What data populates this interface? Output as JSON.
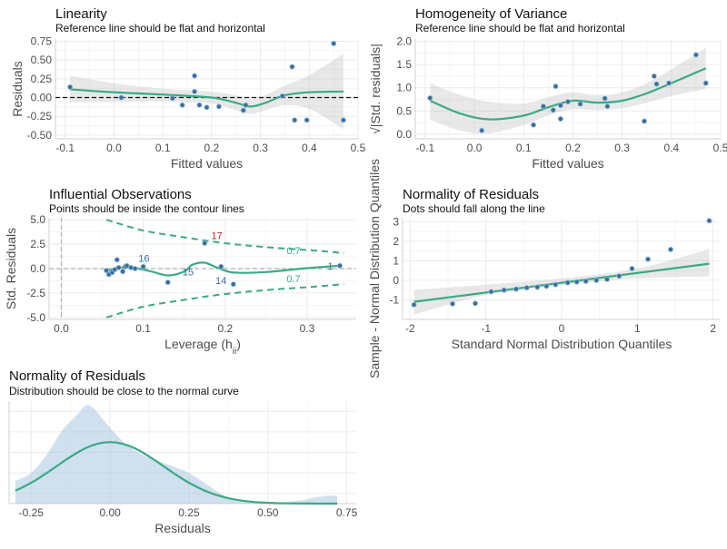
{
  "palette": {
    "line": "#3aaa85",
    "band": "#bdbdbd",
    "point": "#3a6d9a",
    "outlier": "#c62828",
    "density": "#a9c6e0",
    "grid": "#ebebeb",
    "axis_text": "#4d4d4d"
  },
  "chart_data": [
    {
      "id": "linearity",
      "type": "scatter",
      "title": "Linearity",
      "subtitle": "Reference line should be flat and horizontal",
      "xlabel": "Fitted values",
      "ylabel": "Residuals",
      "xlim": [
        -0.12,
        0.5
      ],
      "ylim": [
        -0.55,
        0.78
      ],
      "xticks": [
        -0.1,
        0.0,
        0.1,
        0.2,
        0.3,
        0.4,
        0.5
      ],
      "xtick_labels": [
        "-0.1",
        "0.0",
        "0.1",
        "0.2",
        "0.3",
        "0.4",
        "0.5"
      ],
      "yticks": [
        -0.5,
        -0.25,
        0.0,
        0.25,
        0.5,
        0.75
      ],
      "ytick_labels": [
        "-0.50",
        "-0.25",
        "0.00",
        "0.25",
        "0.50",
        "0.75"
      ],
      "hline": 0,
      "points": [
        [
          -0.09,
          0.14
        ],
        [
          0.015,
          0.0
        ],
        [
          0.12,
          -0.01
        ],
        [
          0.14,
          -0.1
        ],
        [
          0.165,
          0.29
        ],
        [
          0.165,
          0.08
        ],
        [
          0.175,
          -0.1
        ],
        [
          0.19,
          -0.13
        ],
        [
          0.215,
          -0.12
        ],
        [
          0.265,
          -0.17
        ],
        [
          0.27,
          -0.1
        ],
        [
          0.345,
          0.02
        ],
        [
          0.365,
          0.41
        ],
        [
          0.37,
          -0.3
        ],
        [
          0.395,
          -0.3
        ],
        [
          0.45,
          0.72
        ],
        [
          0.47,
          -0.3
        ]
      ],
      "smooth": [
        [
          -0.09,
          0.11
        ],
        [
          0.0,
          0.07
        ],
        [
          0.1,
          0.04
        ],
        [
          0.2,
          0.0
        ],
        [
          0.25,
          -0.07
        ],
        [
          0.28,
          -0.12
        ],
        [
          0.31,
          -0.07
        ],
        [
          0.35,
          0.03
        ],
        [
          0.4,
          0.07
        ],
        [
          0.47,
          0.08
        ]
      ],
      "band_lower": [
        [
          -0.09,
          -0.06
        ],
        [
          0.0,
          -0.06
        ],
        [
          0.1,
          -0.05
        ],
        [
          0.2,
          -0.08
        ],
        [
          0.25,
          -0.17
        ],
        [
          0.28,
          -0.22
        ],
        [
          0.31,
          -0.17
        ],
        [
          0.35,
          -0.1
        ],
        [
          0.4,
          -0.15
        ],
        [
          0.47,
          -0.42
        ]
      ],
      "band_upper": [
        [
          -0.09,
          0.29
        ],
        [
          0.0,
          0.19
        ],
        [
          0.1,
          0.12
        ],
        [
          0.2,
          0.08
        ],
        [
          0.25,
          0.03
        ],
        [
          0.28,
          -0.02
        ],
        [
          0.31,
          0.03
        ],
        [
          0.35,
          0.16
        ],
        [
          0.4,
          0.3
        ],
        [
          0.47,
          0.58
        ]
      ]
    },
    {
      "id": "homogeneity",
      "type": "scatter",
      "title": "Homogeneity of Variance",
      "subtitle": "Reference line should be flat and horizontal",
      "xlabel": "Fitted values",
      "ylabel": "√|Std. residuals|",
      "xlim": [
        -0.12,
        0.5
      ],
      "ylim": [
        -0.1,
        2.05
      ],
      "xticks": [
        -0.1,
        0.0,
        0.1,
        0.2,
        0.3,
        0.4,
        0.5
      ],
      "xtick_labels": [
        "-0.1",
        "0.0",
        "0.1",
        "0.2",
        "0.3",
        "0.4",
        "0.5"
      ],
      "yticks": [
        0.0,
        0.5,
        1.0,
        1.5,
        2.0
      ],
      "ytick_labels": [
        "0.0",
        "0.5",
        "1.0",
        "1.5",
        "2.0"
      ],
      "points": [
        [
          -0.09,
          0.78
        ],
        [
          0.015,
          0.08
        ],
        [
          0.12,
          0.2
        ],
        [
          0.14,
          0.6
        ],
        [
          0.16,
          0.52
        ],
        [
          0.165,
          1.03
        ],
        [
          0.175,
          0.62
        ],
        [
          0.175,
          0.33
        ],
        [
          0.19,
          0.7
        ],
        [
          0.215,
          0.65
        ],
        [
          0.265,
          0.77
        ],
        [
          0.27,
          0.6
        ],
        [
          0.345,
          0.28
        ],
        [
          0.365,
          1.25
        ],
        [
          0.37,
          1.08
        ],
        [
          0.395,
          1.1
        ],
        [
          0.45,
          1.71
        ],
        [
          0.47,
          1.1
        ]
      ],
      "smooth": [
        [
          -0.09,
          0.72
        ],
        [
          -0.03,
          0.45
        ],
        [
          0.03,
          0.32
        ],
        [
          0.1,
          0.4
        ],
        [
          0.15,
          0.58
        ],
        [
          0.2,
          0.72
        ],
        [
          0.25,
          0.68
        ],
        [
          0.3,
          0.72
        ],
        [
          0.35,
          0.88
        ],
        [
          0.4,
          1.1
        ],
        [
          0.47,
          1.42
        ]
      ],
      "band_lower": [
        [
          -0.09,
          0.32
        ],
        [
          -0.03,
          0.08
        ],
        [
          0.03,
          0.02
        ],
        [
          0.1,
          0.2
        ],
        [
          0.15,
          0.4
        ],
        [
          0.2,
          0.54
        ],
        [
          0.25,
          0.52
        ],
        [
          0.3,
          0.56
        ],
        [
          0.35,
          0.68
        ],
        [
          0.4,
          0.82
        ],
        [
          0.47,
          0.98
        ]
      ],
      "band_upper": [
        [
          -0.09,
          1.1
        ],
        [
          -0.03,
          0.85
        ],
        [
          0.03,
          0.7
        ],
        [
          0.1,
          0.66
        ],
        [
          0.15,
          0.8
        ],
        [
          0.2,
          0.9
        ],
        [
          0.25,
          0.84
        ],
        [
          0.3,
          0.9
        ],
        [
          0.35,
          1.1
        ],
        [
          0.4,
          1.4
        ],
        [
          0.47,
          1.86
        ]
      ]
    },
    {
      "id": "influential",
      "type": "scatter",
      "title": "Influential Observations",
      "subtitle": "Points should be inside the contour lines",
      "xlabel": "Leverage (h",
      "xlabel_sub": "ii",
      "xlabel_end": ")",
      "ylabel": "Std. Residuals",
      "xlim": [
        -0.015,
        0.36
      ],
      "ylim": [
        -5.2,
        5.2
      ],
      "xticks": [
        0.0,
        0.1,
        0.2,
        0.3
      ],
      "xtick_labels": [
        "0.0",
        "0.1",
        "0.2",
        "0.3"
      ],
      "yticks": [
        -5.0,
        -2.5,
        0.0,
        2.5,
        5.0
      ],
      "ytick_labels": [
        "-5.0",
        "-2.5",
        "0.0",
        "2.5",
        "5.0"
      ],
      "hline": 0,
      "vline": 0,
      "points": [
        [
          0.055,
          -0.2
        ],
        [
          0.058,
          -0.6
        ],
        [
          0.062,
          -0.4
        ],
        [
          0.065,
          -0.1
        ],
        [
          0.068,
          0.9
        ],
        [
          0.07,
          0.1
        ],
        [
          0.075,
          -0.3
        ],
        [
          0.078,
          0.2
        ],
        [
          0.08,
          0.3
        ],
        [
          0.085,
          0.1
        ],
        [
          0.09,
          0.0
        ],
        [
          0.1,
          0.2
        ],
        [
          0.13,
          -1.4
        ],
        [
          0.175,
          2.6
        ],
        [
          0.195,
          0.2
        ],
        [
          0.21,
          -1.6
        ],
        [
          0.34,
          0.3
        ]
      ],
      "point_labels": [
        {
          "text": "17",
          "x": 0.183,
          "y": 3.0,
          "color": "outlier"
        },
        {
          "text": "16",
          "x": 0.094,
          "y": 0.7,
          "color": "point"
        },
        {
          "text": "15",
          "x": 0.148,
          "y": -0.7,
          "color": "point"
        },
        {
          "text": "14",
          "x": 0.188,
          "y": -1.6,
          "color": "point"
        },
        {
          "text": "1",
          "x": 0.325,
          "y": -0.1,
          "color": "point"
        }
      ],
      "smooth": [
        [
          0.055,
          -0.3
        ],
        [
          0.07,
          0.1
        ],
        [
          0.09,
          0.05
        ],
        [
          0.11,
          -0.3
        ],
        [
          0.13,
          -0.7
        ],
        [
          0.15,
          -0.3
        ],
        [
          0.16,
          0.4
        ],
        [
          0.175,
          0.6
        ],
        [
          0.19,
          0.1
        ],
        [
          0.21,
          -0.4
        ],
        [
          0.25,
          -0.35
        ],
        [
          0.3,
          0.05
        ],
        [
          0.34,
          0.3
        ]
      ],
      "contour_upper": [
        [
          0.055,
          5.0
        ],
        [
          0.1,
          3.9
        ],
        [
          0.15,
          3.2
        ],
        [
          0.2,
          2.6
        ],
        [
          0.25,
          2.2
        ],
        [
          0.3,
          1.9
        ],
        [
          0.345,
          1.6
        ]
      ],
      "contour_lower": [
        [
          0.055,
          -5.0
        ],
        [
          0.1,
          -3.9
        ],
        [
          0.15,
          -3.2
        ],
        [
          0.2,
          -2.6
        ],
        [
          0.25,
          -2.2
        ],
        [
          0.3,
          -1.9
        ],
        [
          0.345,
          -1.6
        ]
      ],
      "contour_labels": [
        {
          "text": "0.7",
          "x": 0.275,
          "y": 1.5
        },
        {
          "text": "0.7",
          "x": 0.275,
          "y": -1.4
        }
      ]
    },
    {
      "id": "qq",
      "type": "scatter",
      "title": "Normality of Residuals",
      "subtitle": "Dots should fall along the line",
      "xlabel": "Standard Normal Distribution Quantiles",
      "ylabel": "Sample - Normal Distribution Quantiles",
      "xlim": [
        -2.1,
        2.1
      ],
      "ylim": [
        -2.0,
        3.2
      ],
      "xticks": [
        -2,
        -1,
        0,
        1,
        2
      ],
      "xtick_labels": [
        "-2",
        "-1",
        "0",
        "1",
        "2"
      ],
      "yticks": [
        -1,
        0,
        1,
        2,
        3
      ],
      "ytick_labels": [
        "-1",
        "0",
        "1",
        "2",
        "3"
      ],
      "points": [
        [
          -1.95,
          -1.25
        ],
        [
          -1.44,
          -1.2
        ],
        [
          -1.14,
          -1.18
        ],
        [
          -0.93,
          -0.58
        ],
        [
          -0.76,
          -0.5
        ],
        [
          -0.6,
          -0.45
        ],
        [
          -0.46,
          -0.38
        ],
        [
          -0.32,
          -0.35
        ],
        [
          -0.2,
          -0.3
        ],
        [
          -0.08,
          -0.22
        ],
        [
          0.08,
          -0.12
        ],
        [
          0.2,
          -0.08
        ],
        [
          0.32,
          -0.05
        ],
        [
          0.46,
          0.0
        ],
        [
          0.6,
          0.05
        ],
        [
          0.76,
          0.22
        ],
        [
          0.93,
          0.6
        ],
        [
          1.14,
          1.08
        ],
        [
          1.44,
          1.58
        ],
        [
          1.95,
          3.05
        ]
      ],
      "line": [
        [
          -1.95,
          -1.1
        ],
        [
          1.95,
          0.85
        ]
      ],
      "band_lower": [
        [
          -1.95,
          -1.75
        ],
        [
          -1.0,
          -0.75
        ],
        [
          0.0,
          -0.25
        ],
        [
          1.0,
          0.1
        ],
        [
          1.95,
          0.2
        ]
      ],
      "band_upper": [
        [
          -1.95,
          -0.5
        ],
        [
          -1.0,
          -0.22
        ],
        [
          0.0,
          0.1
        ],
        [
          1.0,
          0.6
        ],
        [
          1.95,
          1.6
        ]
      ]
    },
    {
      "id": "density",
      "type": "area",
      "title": "Normality of Residuals",
      "subtitle": "Distribution should be close to the normal curve",
      "xlabel": "Residuals",
      "ylabel": "",
      "xlim": [
        -0.32,
        0.78
      ],
      "ylim": [
        0,
        1.0
      ],
      "xticks": [
        -0.25,
        0.0,
        0.25,
        0.5,
        0.75
      ],
      "xtick_labels": [
        "-0.25",
        "0.00",
        "0.25",
        "0.50",
        "0.75"
      ],
      "density": [
        [
          -0.3,
          0.22
        ],
        [
          -0.25,
          0.3
        ],
        [
          -0.2,
          0.48
        ],
        [
          -0.15,
          0.72
        ],
        [
          -0.1,
          0.88
        ],
        [
          -0.075,
          0.96
        ],
        [
          -0.05,
          0.92
        ],
        [
          0.0,
          0.74
        ],
        [
          0.05,
          0.58
        ],
        [
          0.1,
          0.48
        ],
        [
          0.15,
          0.42
        ],
        [
          0.2,
          0.36
        ],
        [
          0.25,
          0.3
        ],
        [
          0.3,
          0.2
        ],
        [
          0.35,
          0.1
        ],
        [
          0.4,
          0.04
        ],
        [
          0.5,
          0.01
        ],
        [
          0.6,
          0.03
        ],
        [
          0.65,
          0.06
        ],
        [
          0.7,
          0.08
        ],
        [
          0.72,
          0.07
        ]
      ],
      "normal_mean": 0.0,
      "normal_sd": 0.17,
      "normal_peak": 0.6
    }
  ]
}
